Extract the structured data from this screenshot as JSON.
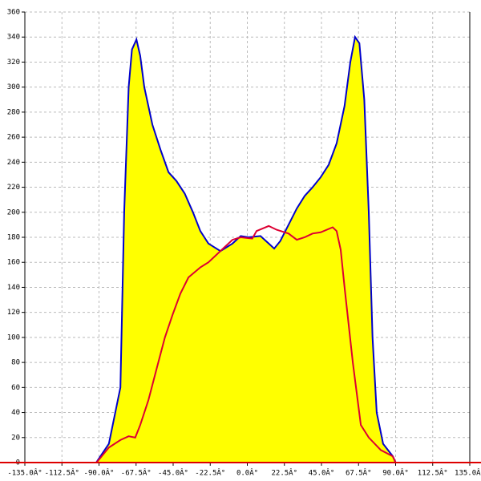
{
  "chart_data": {
    "type": "area",
    "xlim": [
      -135,
      135
    ],
    "xticks": [
      {
        "value": -135,
        "label": "-135.0Â°"
      },
      {
        "value": -112.5,
        "label": "-112.5Â°"
      },
      {
        "value": -90,
        "label": "-90.0Â°"
      },
      {
        "value": -67.5,
        "label": "-67.5Â°"
      },
      {
        "value": -45,
        "label": "-45.0Â°"
      },
      {
        "value": -22.5,
        "label": "-22.5Â°"
      },
      {
        "value": 0,
        "label": "0.0Â°"
      },
      {
        "value": 22.5,
        "label": "22.5Â°"
      },
      {
        "value": 45,
        "label": "45.0Â°"
      },
      {
        "value": 67.5,
        "label": "67.5Â°"
      },
      {
        "value": 90,
        "label": "90.0Â°"
      },
      {
        "value": 112.5,
        "label": "112.5Â°"
      },
      {
        "value": 135,
        "label": "135.0Â°"
      }
    ],
    "ylim": [
      0,
      360
    ],
    "yticks": [
      0,
      20,
      40,
      60,
      80,
      100,
      120,
      140,
      160,
      180,
      200,
      220,
      240,
      260,
      280,
      300,
      320,
      340,
      360
    ],
    "grid": true,
    "axis_color": "#dd0000",
    "series": [
      {
        "type": "area",
        "color": "#0000cc",
        "fill": "#ffff00",
        "x": [
          -91.7,
          -84,
          -77,
          -74.7,
          -72,
          -70,
          -67.3,
          -65,
          -62.5,
          -57.6,
          -52.7,
          -47.8,
          -43,
          -38,
          -33,
          -28.5,
          -23.6,
          -16.3,
          -9,
          -4,
          0.7,
          8,
          13,
          16.3,
          20,
          25,
          30,
          34.8,
          39.6,
          44.5,
          49.4,
          54.2,
          59,
          62.5,
          65.4,
          68,
          71,
          73.7,
          76,
          78.5,
          82.4,
          88.3,
          90
        ],
        "values": [
          0,
          15,
          60,
          200,
          300,
          330,
          338,
          325,
          300,
          270,
          250,
          232,
          225,
          215,
          200,
          185,
          175,
          169,
          175,
          181,
          180,
          181,
          175,
          171,
          177,
          190,
          203,
          213,
          220,
          228,
          238,
          255,
          285,
          320,
          340,
          335,
          290,
          200,
          100,
          40,
          15,
          5,
          0
        ]
      },
      {
        "type": "line",
        "color": "#dd0033",
        "x": [
          -91.5,
          -84,
          -77,
          -72,
          -68,
          -65,
          -60,
          -55,
          -50,
          -45.4,
          -40.6,
          -35.7,
          -28.5,
          -23.6,
          -13.9,
          -9,
          -4,
          3,
          5.6,
          13,
          17.8,
          25,
          30,
          34.8,
          39.6,
          44.5,
          51.8,
          54.2,
          56.7,
          59,
          64,
          68.9,
          73.7,
          81,
          88.3,
          90
        ],
        "values": [
          0,
          12,
          18,
          21,
          20,
          30,
          50,
          75,
          100,
          118,
          135,
          148,
          156,
          160,
          172,
          178,
          180,
          179,
          185,
          189,
          186,
          183,
          178,
          180,
          183,
          184,
          188,
          185,
          170,
          140,
          80,
          30,
          20,
          10,
          5,
          0
        ]
      }
    ]
  }
}
